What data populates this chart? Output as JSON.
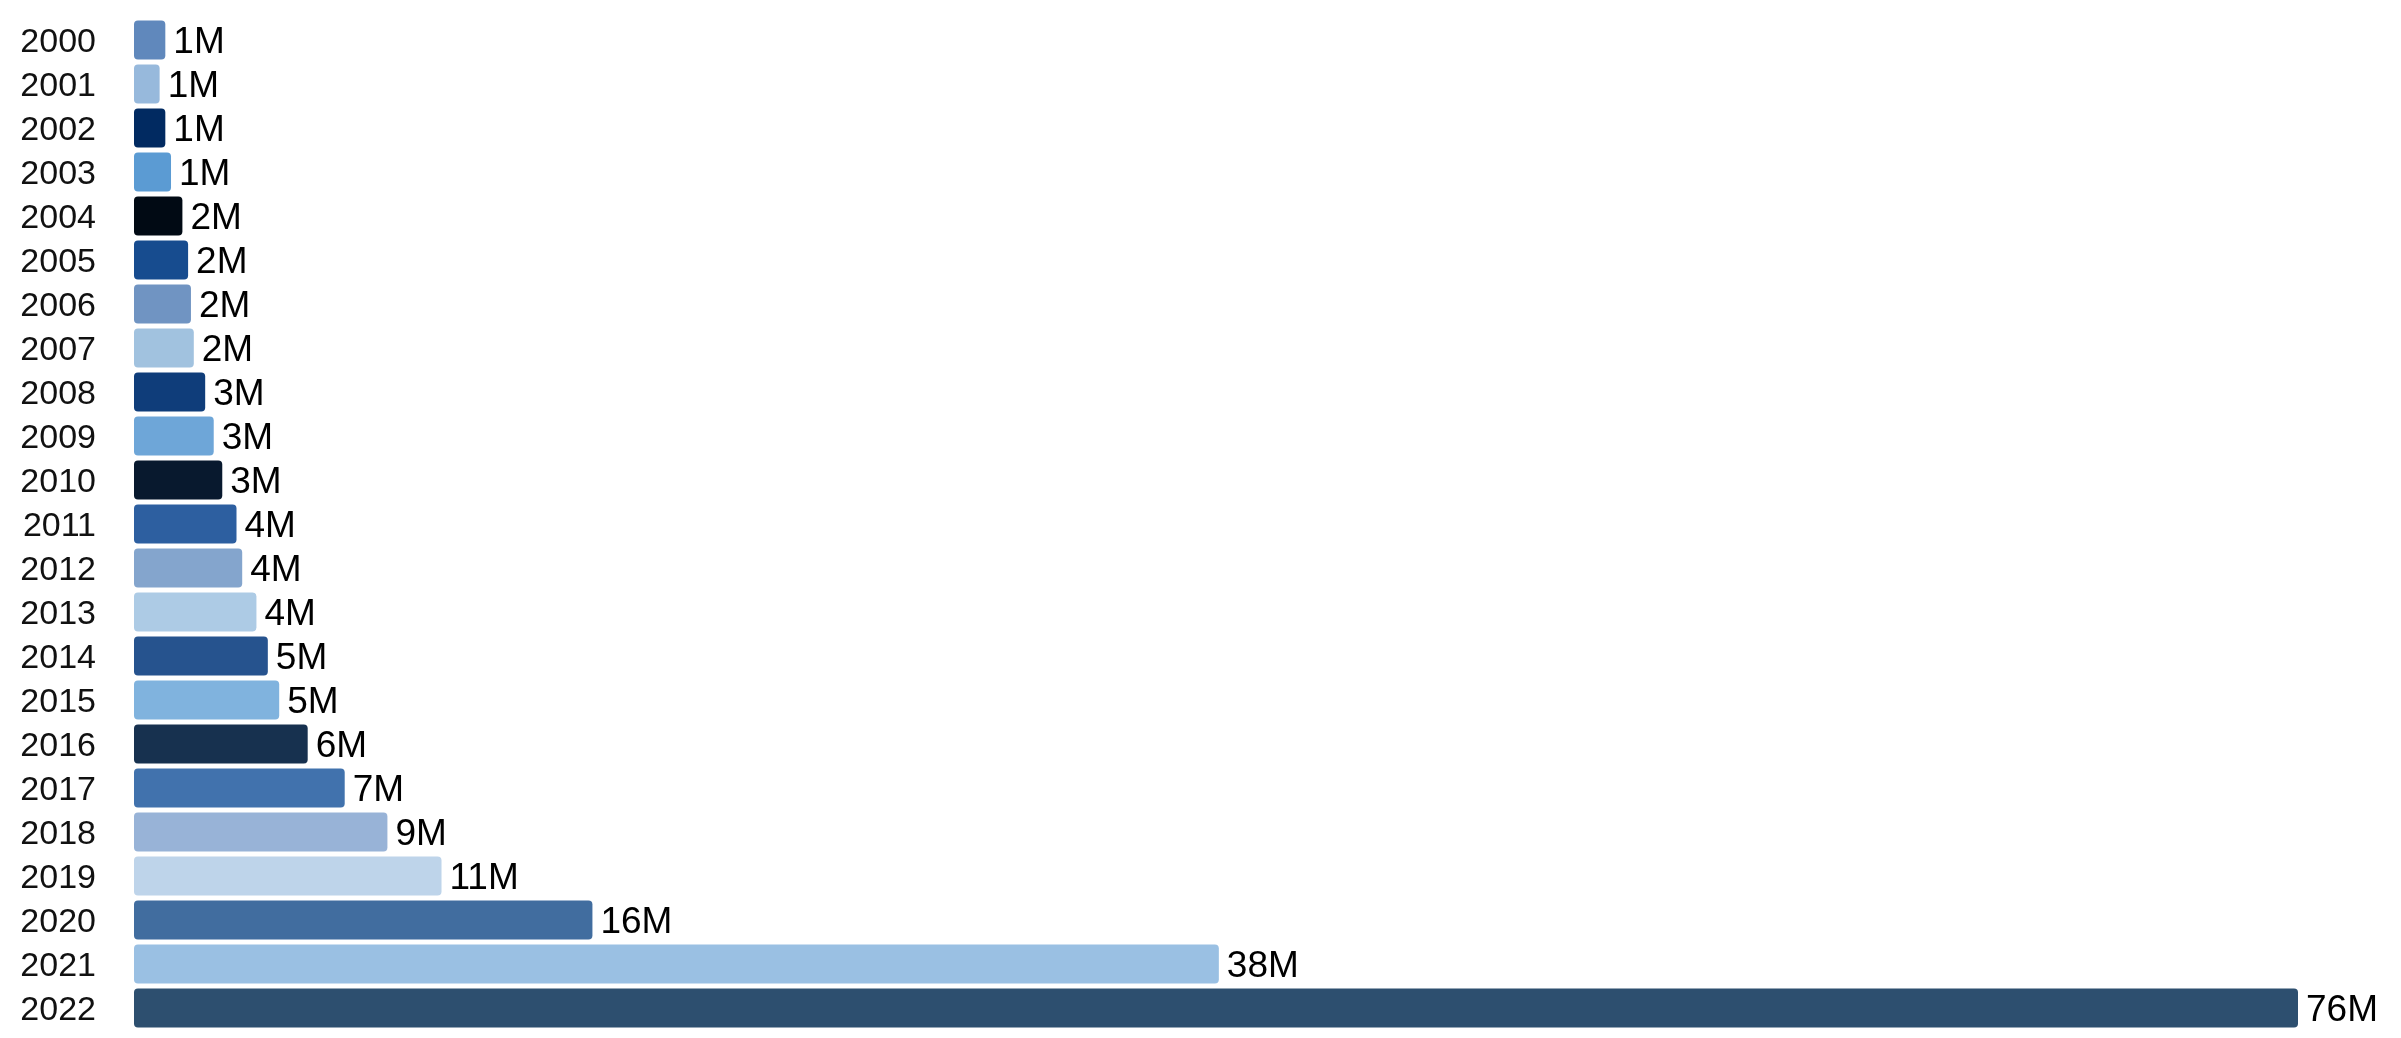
{
  "chart_data": {
    "type": "bar",
    "orientation": "horizontal",
    "categories": [
      "2000",
      "2001",
      "2002",
      "2003",
      "2004",
      "2005",
      "2006",
      "2007",
      "2008",
      "2009",
      "2010",
      "2011",
      "2012",
      "2013",
      "2014",
      "2015",
      "2016",
      "2017",
      "2018",
      "2019",
      "2020",
      "2021",
      "2022"
    ],
    "values": [
      1.1,
      0.9,
      1.1,
      1.3,
      1.7,
      1.9,
      2.0,
      2.1,
      2.5,
      2.8,
      3.1,
      3.6,
      3.8,
      4.3,
      4.7,
      5.1,
      6.1,
      7.4,
      8.9,
      10.8,
      16.1,
      38.1,
      76
    ],
    "value_labels": [
      "1M",
      "1M",
      "1M",
      "1M",
      "2M",
      "2M",
      "2M",
      "2M",
      "3M",
      "3M",
      "3M",
      "4M",
      "4M",
      "4M",
      "5M",
      "5M",
      "6M",
      "7M",
      "9M",
      "11M",
      "16M",
      "38M",
      "76M"
    ],
    "colors": [
      "#6088bc",
      "#97b9dc",
      "#012a61",
      "#5b9bd3",
      "#010a14",
      "#174c8f",
      "#7094c2",
      "#a1c2df",
      "#0f3d7a",
      "#6ea6d8",
      "#08192e",
      "#2d5fa0",
      "#84a5cd",
      "#adcbe5",
      "#26538e",
      "#80b3de",
      "#17314f",
      "#4172ad",
      "#98b3d7",
      "#bed4ea",
      "#416d9f",
      "#9ac0e3",
      "#2d4f6f"
    ]
  }
}
